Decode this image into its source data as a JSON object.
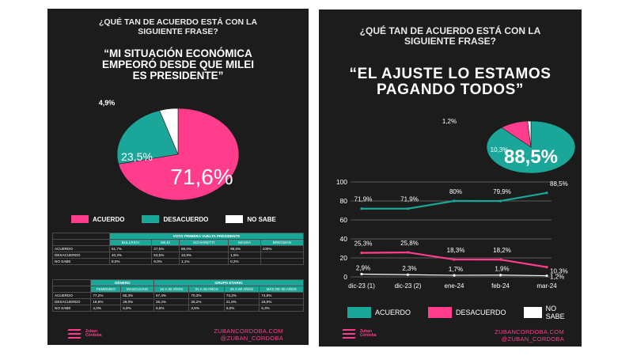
{
  "left": {
    "question": [
      "¿QUÉ TAN DE ACUERDO ESTÁ CON LA",
      "SIGUIENTE FRASE?"
    ],
    "quote": [
      "“MI SITUACIÓN ECONÓMICA",
      "EMPEORÓ DESDE QUE MILEI",
      "ES PRESIDENTE”"
    ],
    "legend": [
      {
        "label": "ACUERDO",
        "color": "#ff3d8c"
      },
      {
        "label": "DESACUERDO",
        "color": "#1aa698"
      },
      {
        "label": "NO SABE",
        "color": "#ffffff"
      }
    ],
    "table1": {
      "group_header": "VOTO PRIMERA VUELTA PRESIDENTE",
      "columns": [
        "BULLRICH",
        "MILEI",
        "SCHIARETTI",
        "MASSA",
        "BREGMAN"
      ],
      "rows": [
        {
          "label": "ACUERDO",
          "values": [
            "51,7%",
            "37,5%",
            "88,0%",
            "98,5%",
            "100%"
          ]
        },
        {
          "label": "DESACUERDO",
          "values": [
            "40,3%",
            "53,5%",
            "10,9%",
            "1,5%",
            ""
          ]
        },
        {
          "label": "NO SABE",
          "values": [
            "8,0%",
            "9,0%",
            "1,1%",
            "0,2%",
            ""
          ]
        }
      ]
    },
    "table2": {
      "group_headers": [
        "GÉNERO",
        "GRUPO ETARIO"
      ],
      "columns": [
        "FEMENINO",
        "MASCULINO",
        "16 A 30 AÑOS",
        "31 A 45 AÑOS",
        "46 A 60 AÑOS",
        "MÁS DE 60 AÑOS"
      ],
      "rows": [
        {
          "label": "ACUERDO",
          "values": [
            "77,2%",
            "65,3%",
            "67,4%",
            "70,3%",
            "73,2%",
            "74,8%"
          ]
        },
        {
          "label": "DESACUERDO",
          "values": [
            "18,8%",
            "29,0%",
            "26,2%",
            "26,2%",
            "21,8%",
            "18,9%"
          ]
        },
        {
          "label": "NO SABE",
          "values": [
            "4,0%",
            "5,9%",
            "6,5%",
            "3,5%",
            "5,0%",
            "6,3%"
          ]
        }
      ]
    },
    "logo": [
      "Zuban",
      "Córdoba"
    ],
    "social": [
      "ZUBANCORDOBA.COM",
      "@ZUBAN_CORDOBA"
    ]
  },
  "right": {
    "question": [
      "¿QUÉ TAN DE ACUERDO ESTÁ CON LA",
      "SIGUIENTE FRASE?"
    ],
    "quote": [
      "“EL AJUSTE LO ESTAMOS",
      "PAGANDO TODOS”"
    ],
    "legend": [
      {
        "label": "ACUERDO",
        "color": "#1aa698"
      },
      {
        "label": "DESACUERDO",
        "color": "#ff3d8c"
      },
      {
        "label": "NO SABE",
        "color": "#ffffff"
      }
    ],
    "logo": [
      "Zuban",
      "Córdoba"
    ],
    "social": [
      "ZUBANCORDOBA.COM",
      "@ZUBAN_CORDOBA"
    ]
  },
  "colors": {
    "teal": "#1aa698",
    "pink": "#ff3d8c",
    "white": "#ffffff",
    "background": "#1c1c1c"
  },
  "chart_data": [
    {
      "type": "pie",
      "labels": [
        "ACUERDO",
        "DESACUERDO",
        "NO SABE"
      ],
      "values": [
        71.6,
        23.5,
        4.9
      ],
      "value_labels": [
        "71,6%",
        "23,5%",
        "4,9%"
      ],
      "colors": [
        "#ff3d8c",
        "#1aa698",
        "#ffffff"
      ]
    },
    {
      "type": "pie",
      "labels": [
        "ACUERDO",
        "DESACUERDO",
        "NO SABE"
      ],
      "values": [
        88.5,
        10.3,
        1.2
      ],
      "value_labels": [
        "88,5%",
        "10,3%",
        "1,2%"
      ],
      "colors": [
        "#1aa698",
        "#ff3d8c",
        "#ffffff"
      ]
    },
    {
      "type": "line",
      "categories": [
        "dic-23 (1)",
        "dic-23 (2)",
        "ene-24",
        "feb-24",
        "mar-24"
      ],
      "ylim": [
        0,
        100
      ],
      "yticks": [
        "0",
        "20",
        "40",
        "60",
        "80",
        "100"
      ],
      "grid": true,
      "series": [
        {
          "name": "ACUERDO",
          "color": "#1aa698",
          "values": [
            71.9,
            71.9,
            80,
            79.9,
            88.5
          ],
          "labels": [
            "71,9%",
            "71,9%",
            "80%",
            "79,9%",
            "88,5%"
          ]
        },
        {
          "name": "DESACUERDO",
          "color": "#ff3d8c",
          "values": [
            25.3,
            25.8,
            18.3,
            18.2,
            10.3
          ],
          "labels": [
            "25,3%",
            "25,8%",
            "18,3%",
            "18,2%",
            "10,3%"
          ]
        },
        {
          "name": "NO SABE",
          "color": "#ffffff",
          "values": [
            2.9,
            2.3,
            1.7,
            1.9,
            1.2
          ],
          "labels": [
            "2,9%",
            "2,3%",
            "1,7%",
            "1,9%",
            "1,2%"
          ]
        }
      ]
    }
  ]
}
